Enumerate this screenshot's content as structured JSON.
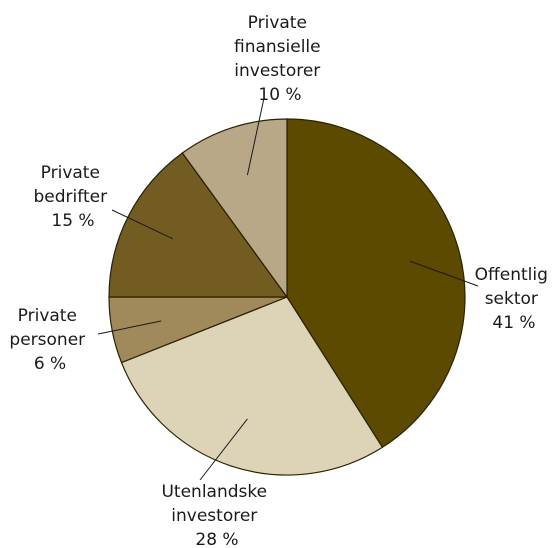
{
  "chart_data": {
    "type": "pie",
    "title": "",
    "slices": [
      {
        "lines": [
          "Offentlig",
          "sektor"
        ],
        "pct_label": "41 %",
        "value": 41,
        "color": "#5c4a00"
      },
      {
        "lines": [
          "Utenlandske",
          "investorer"
        ],
        "pct_label": "28 %",
        "value": 28,
        "color": "#ddd4b8"
      },
      {
        "lines": [
          "Private",
          "personer"
        ],
        "pct_label": "6 %",
        "value": 6,
        "color": "#a08a5b"
      },
      {
        "lines": [
          "Private",
          "bedrifter"
        ],
        "pct_label": "15 %",
        "value": 15,
        "color": "#735c22"
      },
      {
        "lines": [
          "Private",
          "finansielle",
          "investorer"
        ],
        "pct_label": "10 %",
        "value": 10,
        "color": "#b8a888"
      }
    ]
  }
}
